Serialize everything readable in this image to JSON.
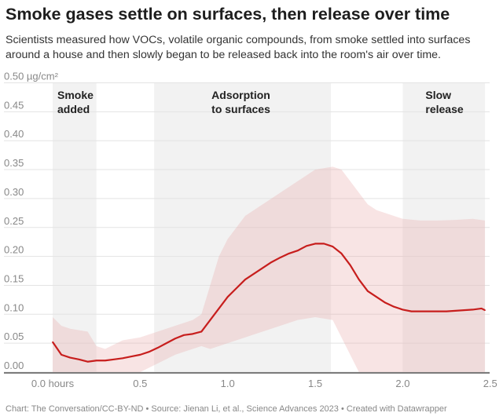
{
  "title": "Smoke gases settle on surfaces, then release over time",
  "subtitle": "Scientists measured how VOCs, volatile organic compounds, from smoke settled into surfaces around a house and then slowly began to be released back into the room's air over time.",
  "footer": "Chart: The Conversation/CC-BY-ND • Source: Jienan Li, et al., Science Advances 2023 • Created with Datawrapper",
  "chart_data": {
    "type": "line",
    "ylim": [
      0,
      0.5
    ],
    "xlim": [
      0,
      2.5
    ],
    "y_ticks": [
      "0.00",
      "0.05",
      "0.10",
      "0.15",
      "0.20",
      "0.25",
      "0.30",
      "0.35",
      "0.40",
      "0.45",
      "0.50 µg/cm²"
    ],
    "x_ticks": [
      "0.0 hours",
      "0.5",
      "1.0",
      "1.5",
      "2.0",
      "2.5"
    ],
    "grid": true,
    "colors": {
      "line": "#c71e1d",
      "range": "#e8a5a5",
      "phase": "#f2f2f2"
    },
    "phases": [
      {
        "label": [
          "Smoke",
          "added"
        ],
        "start": 0,
        "end": 0.25
      },
      {
        "label": [
          "Adsorption",
          "to surfaces"
        ],
        "start": 0.58,
        "end": 1.59
      },
      {
        "label": [
          "Slow",
          "release"
        ],
        "start": 2.0,
        "end": 2.47
      }
    ],
    "mean": {
      "x": [
        0,
        0.05,
        0.1,
        0.15,
        0.2,
        0.25,
        0.3,
        0.35,
        0.4,
        0.45,
        0.5,
        0.55,
        0.6,
        0.65,
        0.7,
        0.75,
        0.8,
        0.85,
        0.9,
        0.95,
        1.0,
        1.05,
        1.1,
        1.15,
        1.2,
        1.25,
        1.3,
        1.35,
        1.4,
        1.45,
        1.5,
        1.55,
        1.6,
        1.65,
        1.7,
        1.75,
        1.8,
        1.85,
        1.9,
        1.95,
        2.0,
        2.05,
        2.1,
        2.15,
        2.2,
        2.25,
        2.3,
        2.35,
        2.4,
        2.45,
        2.47
      ],
      "y": [
        0.052,
        0.03,
        0.025,
        0.022,
        0.018,
        0.02,
        0.02,
        0.022,
        0.024,
        0.027,
        0.03,
        0.035,
        0.042,
        0.05,
        0.058,
        0.064,
        0.066,
        0.07,
        0.09,
        0.11,
        0.13,
        0.145,
        0.16,
        0.17,
        0.18,
        0.19,
        0.198,
        0.205,
        0.21,
        0.218,
        0.222,
        0.222,
        0.217,
        0.205,
        0.185,
        0.16,
        0.14,
        0.13,
        0.12,
        0.113,
        0.108,
        0.105,
        0.105,
        0.105,
        0.105,
        0.105,
        0.106,
        0.107,
        0.108,
        0.11,
        0.107
      ]
    },
    "range": {
      "x": [
        0,
        0.05,
        0.1,
        0.2,
        0.25,
        0.3,
        0.4,
        0.5,
        0.6,
        0.7,
        0.8,
        0.85,
        0.9,
        0.95,
        1.0,
        1.05,
        1.1,
        1.2,
        1.3,
        1.4,
        1.5,
        1.6,
        1.65,
        1.7,
        1.75,
        1.8,
        1.85,
        1.9,
        2.0,
        2.1,
        2.2,
        2.3,
        2.4,
        2.47
      ],
      "upper": [
        0.095,
        0.08,
        0.075,
        0.07,
        0.045,
        0.04,
        0.055,
        0.06,
        0.07,
        0.08,
        0.09,
        0.1,
        0.15,
        0.2,
        0.23,
        0.25,
        0.27,
        0.29,
        0.31,
        0.33,
        0.35,
        0.355,
        0.35,
        0.33,
        0.31,
        0.29,
        0.28,
        0.275,
        0.265,
        0.262,
        0.262,
        0.263,
        0.265,
        0.262
      ],
      "lower": [
        0,
        0,
        0,
        0,
        0,
        0,
        0,
        0,
        0.015,
        0.03,
        0.04,
        0.045,
        0.04,
        0.045,
        0.05,
        0.055,
        0.06,
        0.07,
        0.08,
        0.09,
        0.095,
        0.09,
        0.06,
        0.03,
        0,
        0,
        0,
        0,
        0,
        0,
        0,
        0,
        0,
        0
      ]
    }
  }
}
